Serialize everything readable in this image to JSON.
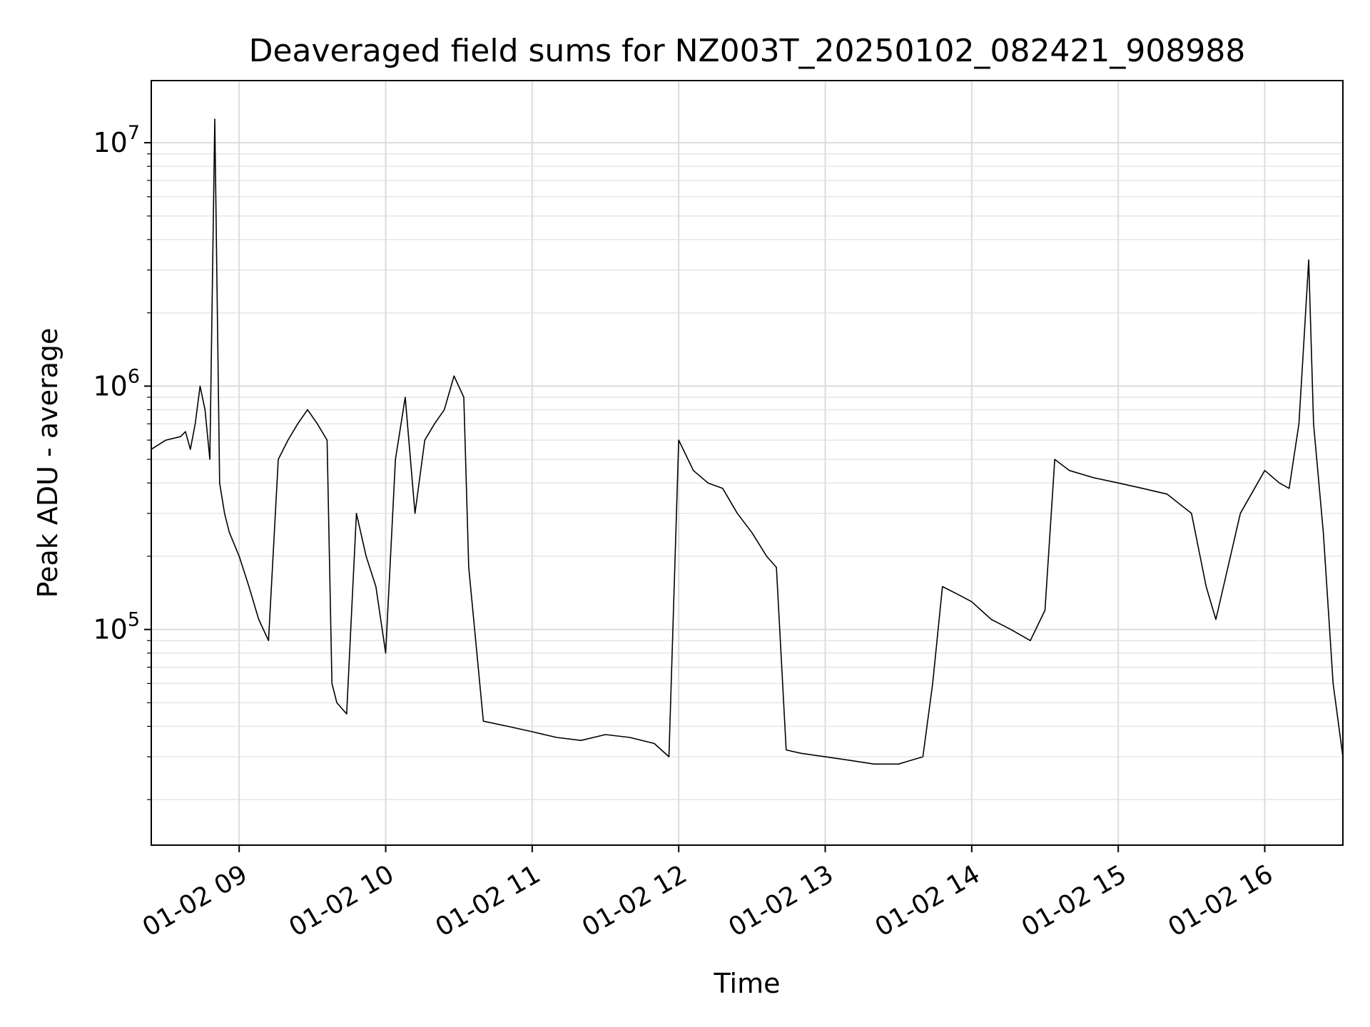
{
  "chart_data": {
    "type": "line",
    "title": "Deaveraged field sums for NZ003T_20250102_082421_908988",
    "xlabel": "Time",
    "ylabel": "Peak ADU - average",
    "x_range": [
      "2025-01-02 08:24",
      "2025-01-02 16:32"
    ],
    "y_range": [
      13000,
      18000000
    ],
    "y_scale": "log",
    "grid": true,
    "line_color": "#000000",
    "x_ticks": [
      {
        "at": "2025-01-02 09:00",
        "label": "01-02 09"
      },
      {
        "at": "2025-01-02 10:00",
        "label": "01-02 10"
      },
      {
        "at": "2025-01-02 11:00",
        "label": "01-02 11"
      },
      {
        "at": "2025-01-02 12:00",
        "label": "01-02 12"
      },
      {
        "at": "2025-01-02 13:00",
        "label": "01-02 13"
      },
      {
        "at": "2025-01-02 14:00",
        "label": "01-02 14"
      },
      {
        "at": "2025-01-02 15:00",
        "label": "01-02 15"
      },
      {
        "at": "2025-01-02 16:00",
        "label": "01-02 16"
      }
    ],
    "y_ticks": [
      {
        "value": 100000,
        "base": "10",
        "exp": "5"
      },
      {
        "value": 1000000,
        "base": "10",
        "exp": "6"
      },
      {
        "value": 10000000,
        "base": "10",
        "exp": "7"
      }
    ],
    "series": [
      {
        "x": [
          "08:24",
          "08:30",
          "08:36",
          "08:38",
          "08:40",
          "08:42",
          "08:44",
          "08:46",
          "08:48",
          "08:50",
          "08:52",
          "08:54",
          "08:56",
          "09:00",
          "09:04",
          "09:08",
          "09:12",
          "09:16",
          "09:20",
          "09:24",
          "09:28",
          "09:32",
          "09:36",
          "09:38",
          "09:40",
          "09:44",
          "09:48",
          "09:52",
          "09:56",
          "10:00",
          "10:04",
          "10:08",
          "10:12",
          "10:16",
          "10:20",
          "10:24",
          "10:28",
          "10:32",
          "10:34",
          "10:40",
          "10:50",
          "11:00",
          "11:10",
          "11:20",
          "11:30",
          "11:40",
          "11:50",
          "11:56",
          "12:00",
          "12:06",
          "12:12",
          "12:18",
          "12:24",
          "12:30",
          "12:36",
          "12:40",
          "12:44",
          "12:50",
          "13:00",
          "13:10",
          "13:20",
          "13:30",
          "13:40",
          "13:44",
          "13:48",
          "13:54",
          "14:00",
          "14:08",
          "14:16",
          "14:24",
          "14:30",
          "14:34",
          "14:40",
          "14:50",
          "15:00",
          "15:10",
          "15:20",
          "15:30",
          "15:36",
          "15:40",
          "15:50",
          "16:00",
          "16:06",
          "16:10",
          "16:14",
          "16:16",
          "16:18",
          "16:20",
          "16:24",
          "16:28",
          "16:32"
        ],
        "y": [
          550000,
          600000,
          620000,
          650000,
          550000,
          700000,
          1000000,
          800000,
          500000,
          12500000,
          400000,
          300000,
          250000,
          200000,
          150000,
          110000,
          90000,
          500000,
          600000,
          700000,
          800000,
          700000,
          600000,
          60000,
          50000,
          45000,
          300000,
          200000,
          150000,
          80000,
          500000,
          900000,
          300000,
          600000,
          700000,
          800000,
          1100000,
          900000,
          180000,
          42000,
          40000,
          38000,
          36000,
          35000,
          37000,
          36000,
          34000,
          30000,
          600000,
          450000,
          400000,
          380000,
          300000,
          250000,
          200000,
          180000,
          32000,
          31000,
          30000,
          29000,
          28000,
          28000,
          30000,
          60000,
          150000,
          140000,
          130000,
          110000,
          100000,
          90000,
          120000,
          500000,
          450000,
          420000,
          400000,
          380000,
          360000,
          300000,
          150000,
          110000,
          300000,
          450000,
          400000,
          380000,
          700000,
          1500000,
          3300000,
          700000,
          250000,
          60000,
          30000
        ]
      }
    ]
  }
}
